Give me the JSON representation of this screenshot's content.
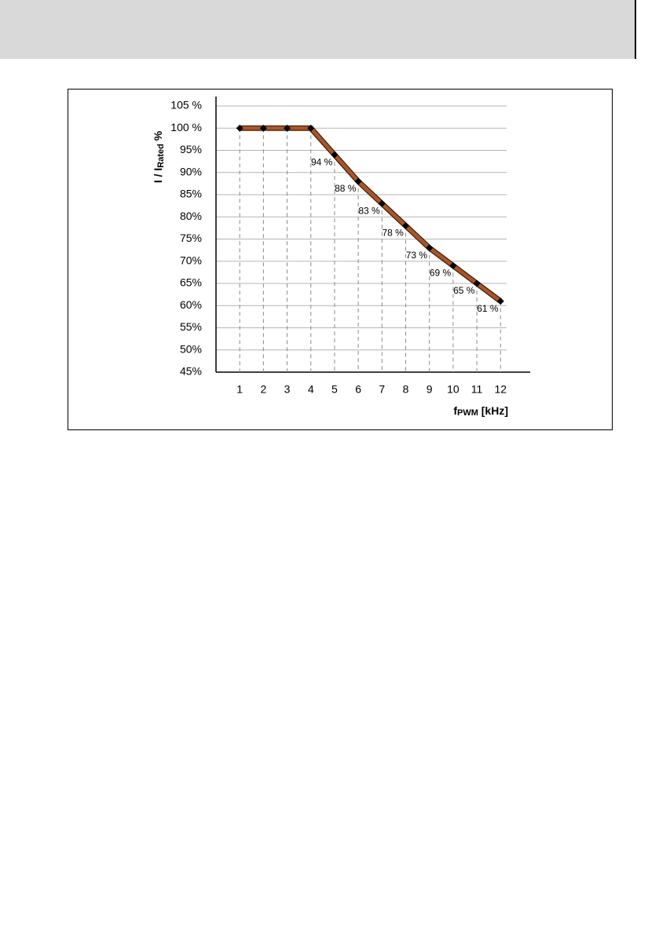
{
  "chart_data": {
    "type": "line",
    "y_label": [
      "I / I",
      "Rated",
      " %"
    ],
    "x_label": [
      "f",
      "PWM",
      " [kHz]"
    ],
    "x": [
      1,
      2,
      3,
      4,
      5,
      6,
      7,
      8,
      9,
      10,
      11,
      12
    ],
    "xlim": [
      0,
      13.25
    ],
    "xticks": [
      1,
      2,
      3,
      4,
      5,
      6,
      7,
      8,
      9,
      10,
      11,
      12
    ],
    "ylim": [
      45,
      105
    ],
    "yticks": [
      {
        "value": 45,
        "label": "45%"
      },
      {
        "value": 50,
        "label": "50%"
      },
      {
        "value": 55,
        "label": "55%"
      },
      {
        "value": 60,
        "label": "60%"
      },
      {
        "value": 65,
        "label": "65%"
      },
      {
        "value": 70,
        "label": "70%"
      },
      {
        "value": 75,
        "label": "75%"
      },
      {
        "value": 80,
        "label": "80%"
      },
      {
        "value": 85,
        "label": "85%"
      },
      {
        "value": 90,
        "label": "90%"
      },
      {
        "value": 95,
        "label": "95%"
      },
      {
        "value": 100,
        "label": "100 %"
      },
      {
        "value": 105,
        "label": "105 %"
      }
    ],
    "grid": true,
    "series": [
      {
        "color": "#a5572b",
        "values": [
          100,
          100,
          100,
          100,
          94,
          88,
          83,
          78,
          73,
          69,
          65,
          61
        ],
        "value_labels": [
          null,
          null,
          null,
          null,
          "94 %",
          "88 %",
          "83 %",
          "78 %",
          "73 %",
          "69 %",
          "65 %",
          "61 %"
        ]
      }
    ]
  }
}
